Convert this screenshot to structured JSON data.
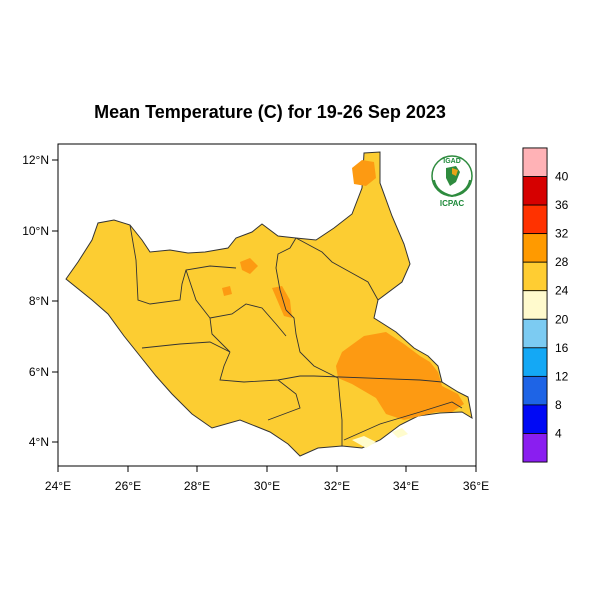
{
  "title": "Mean Temperature (C) for 19-26 Sep 2023",
  "map": {
    "lon_ticks": [
      "24°E",
      "26°E",
      "28°E",
      "30°E",
      "32°E",
      "34°E",
      "36°E"
    ],
    "lat_ticks": [
      "12°N",
      "10°N",
      "8°N",
      "6°N",
      "4°N"
    ],
    "region_colors": {
      "base": "#fccd32",
      "warm": "#fd9a12",
      "cool": "#fffccd"
    }
  },
  "legend": {
    "labels": [
      "40",
      "36",
      "32",
      "28",
      "24",
      "20",
      "16",
      "12",
      "8",
      "4"
    ],
    "colors": [
      "#ffb2b6",
      "#d60000",
      "#ff3200",
      "#ff9a00",
      "#ffcd32",
      "#fffacd",
      "#7ccbf2",
      "#14a8f5",
      "#1e64e6",
      "#0009f5",
      "#8a1ef0"
    ]
  },
  "logo": {
    "top": "IGAD",
    "bottom": "ICPAC"
  }
}
